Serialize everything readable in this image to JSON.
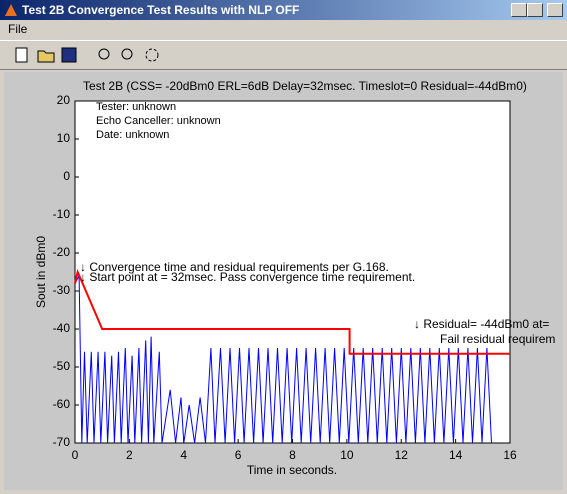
{
  "window": {
    "title": "Test 2B Convergence Test Results with NLP OFF",
    "menu": [
      "File"
    ]
  },
  "chart_data": {
    "type": "line",
    "title": "Test 2B (CSS= -20dBm0 ERL=6dB Delay=32msec. Timeslot=0 Residual=-44dBm0)",
    "x_label": "Time in seconds.",
    "y_label": "Sout in dBm0",
    "xlim": [
      0,
      16
    ],
    "xticks": [
      0,
      2,
      4,
      6,
      8,
      10,
      12,
      14,
      16
    ],
    "ylim": [
      -70,
      20
    ],
    "yticks": [
      20,
      10,
      0,
      -10,
      -20,
      -30,
      -40,
      -50,
      -60,
      -70
    ],
    "annotations": [
      "Tester: unknown",
      "Echo Canceller: unknown",
      "Date: unknown",
      "↓ Convergence time and residual requirements per G.168.",
      "↓ Start point at = 32msec.  Pass convergence time requirement.",
      "↓ Residual=  -44dBm0 at=",
      "Fail residual requirem"
    ],
    "series": [
      {
        "color": "#0000ff",
        "x": [
          0,
          0.15,
          0.25,
          0.35,
          0.45,
          0.6,
          0.7,
          0.85,
          0.95,
          1.1,
          1.2,
          1.35,
          1.45,
          1.6,
          1.7,
          1.85,
          1.95,
          2.1,
          2.2,
          2.35,
          2.45,
          2.6,
          2.7,
          2.8,
          2.9,
          3.1,
          3.2,
          3.5,
          3.7,
          3.9,
          4.0,
          4.2,
          4.4,
          4.6,
          4.8,
          5.0,
          5.15,
          5.35,
          5.52,
          5.7,
          5.87,
          6.05,
          6.22,
          6.4,
          6.57,
          6.75,
          6.92,
          7.1,
          7.27,
          7.45,
          7.62,
          7.8,
          7.97,
          8.15,
          8.32,
          8.5,
          8.67,
          8.85,
          9.02,
          9.2,
          9.37,
          9.55,
          9.72,
          9.9,
          10.07,
          10.25,
          10.42,
          10.6,
          10.77,
          10.95,
          11.12,
          11.3,
          11.47,
          11.65,
          11.82,
          12.0,
          12.17,
          12.35,
          12.52,
          12.7,
          12.87,
          13.05,
          13.22,
          13.4,
          13.57,
          13.75,
          13.92,
          14.1,
          14.27,
          14.45,
          14.62,
          14.8,
          14.97,
          15.15,
          15.32
        ],
        "values": [
          -28,
          -26,
          -70,
          -46,
          -70,
          -46,
          -70,
          -46,
          -70,
          -46,
          -70,
          -47,
          -70,
          -46,
          -70,
          -45,
          -70,
          -47,
          -70,
          -45,
          -70,
          -43,
          -70,
          -42,
          -70,
          -46,
          -70,
          -56,
          -70,
          -58,
          -70,
          -60,
          -70,
          -58,
          -70,
          -45,
          -70,
          -45,
          -70,
          -45,
          -70,
          -45,
          -70,
          -45,
          -70,
          -45,
          -70,
          -45,
          -70,
          -45,
          -70,
          -45,
          -70,
          -45,
          -70,
          -45,
          -70,
          -45,
          -70,
          -45,
          -70,
          -45,
          -70,
          -45,
          -70,
          -45,
          -70,
          -45,
          -70,
          -45,
          -70,
          -45,
          -70,
          -45,
          -70,
          -45,
          -70,
          -45,
          -70,
          -45,
          -70,
          -45,
          -70,
          -45,
          -70,
          -45,
          -70,
          -45,
          -70,
          -45,
          -70,
          -45,
          -70,
          -45,
          -70
        ]
      },
      {
        "color": "#ff0000",
        "x": [
          0,
          0.1,
          1,
          10.1,
          10.1,
          16
        ],
        "values": [
          -28,
          -25,
          -40,
          -40,
          -46.5,
          -46.5
        ]
      }
    ]
  }
}
